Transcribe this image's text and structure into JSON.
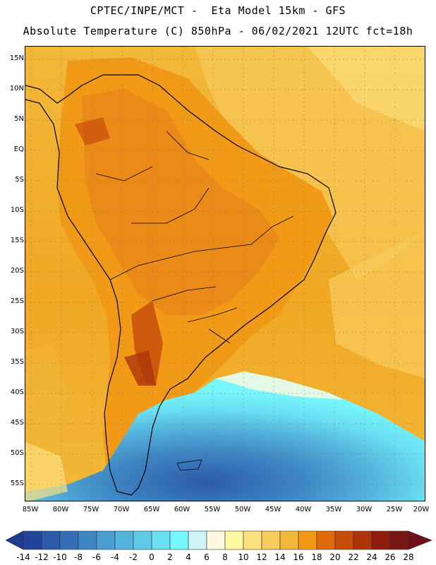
{
  "header": {
    "line1": "CPTEC/INPE/MCT -  Eta Model 15km - GFS",
    "line2": "Absolute Temperature (C) 850hPa - 06/02/2021 12UTC fct=18h"
  },
  "map": {
    "lat_labels": [
      "15N",
      "10N",
      "5N",
      "EQ",
      "5S",
      "10S",
      "15S",
      "20S",
      "25S",
      "30S",
      "35S",
      "40S",
      "45S",
      "50S",
      "55S"
    ],
    "lon_labels": [
      "85W",
      "80W",
      "75W",
      "70W",
      "65W",
      "60W",
      "55W",
      "50W",
      "45W",
      "40W",
      "35W",
      "30W",
      "25W",
      "20W"
    ]
  },
  "colorbar": {
    "labels": [
      "-14",
      "-12",
      "-10",
      "-8",
      "-6",
      "-4",
      "-2",
      "0",
      "2",
      "4",
      "6",
      "8",
      "10",
      "12",
      "14",
      "16",
      "18",
      "20",
      "22",
      "24",
      "26",
      "28"
    ],
    "colors": [
      "#22449a",
      "#2c5aa8",
      "#3570b6",
      "#3f87c4",
      "#4a9fd0",
      "#55b4dc",
      "#60c9e8",
      "#6adff2",
      "#76f7fb",
      "#cdf4f7",
      "#fff9e1",
      "#fef8a0",
      "#fee17e",
      "#f8cd5e",
      "#f2b83a",
      "#f09a18",
      "#e06a0a",
      "#c74d0b",
      "#ae340b",
      "#8e1c0c",
      "#771612"
    ]
  }
}
